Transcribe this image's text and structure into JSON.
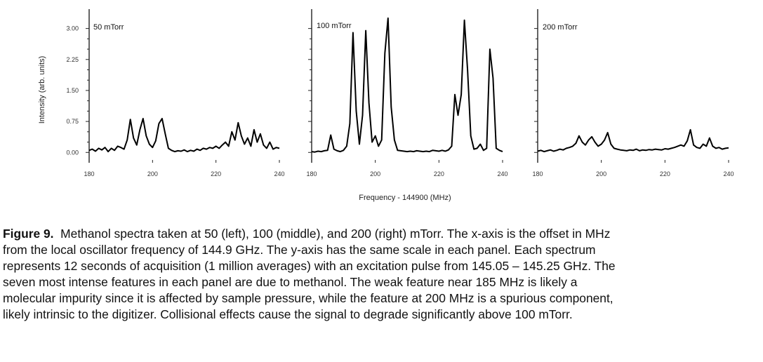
{
  "chart_data": {
    "type": "line",
    "ylabel": "Intensity (arb. units)",
    "xlabel": "Frequency - 144900 (MHz)",
    "yticks": [
      "0.00",
      "0.75",
      "1.50",
      "2.25",
      "3.00"
    ],
    "ylim": [
      -0.25,
      3.35
    ],
    "panels": [
      {
        "label": "50 mTorr",
        "xticks": [
          "180",
          "200",
          "220",
          "240"
        ],
        "xlim": [
          180,
          240
        ],
        "x": [
          180,
          181,
          182,
          183,
          184,
          185,
          186,
          187,
          188,
          189,
          190,
          191,
          192,
          193,
          194,
          195,
          196,
          197,
          198,
          199,
          200,
          201,
          202,
          203,
          204,
          205,
          206,
          207,
          208,
          209,
          210,
          211,
          212,
          213,
          214,
          215,
          216,
          217,
          218,
          219,
          220,
          221,
          222,
          223,
          224,
          225,
          226,
          227,
          228,
          229,
          230,
          231,
          232,
          233,
          234,
          235,
          236,
          237,
          238,
          239,
          240
        ],
        "y": [
          0.05,
          0.08,
          0.03,
          0.1,
          0.06,
          0.12,
          0.02,
          0.1,
          0.05,
          0.15,
          0.12,
          0.08,
          0.3,
          0.8,
          0.35,
          0.18,
          0.55,
          0.82,
          0.4,
          0.2,
          0.12,
          0.28,
          0.7,
          0.82,
          0.45,
          0.1,
          0.05,
          0.02,
          0.04,
          0.03,
          0.06,
          0.02,
          0.05,
          0.03,
          0.08,
          0.05,
          0.1,
          0.08,
          0.12,
          0.1,
          0.15,
          0.1,
          0.18,
          0.25,
          0.15,
          0.5,
          0.3,
          0.72,
          0.4,
          0.2,
          0.35,
          0.15,
          0.55,
          0.25,
          0.45,
          0.18,
          0.1,
          0.25,
          0.08,
          0.12,
          0.1
        ]
      },
      {
        "label": "100 mTorr",
        "xticks": [
          "180",
          "200",
          "220",
          "240"
        ],
        "xlim": [
          180,
          240
        ],
        "x": [
          180,
          181,
          182,
          183,
          184,
          185,
          186,
          187,
          188,
          189,
          190,
          191,
          192,
          193,
          194,
          195,
          196,
          197,
          198,
          199,
          200,
          201,
          202,
          203,
          204,
          205,
          206,
          207,
          208,
          209,
          210,
          211,
          212,
          213,
          214,
          215,
          216,
          217,
          218,
          219,
          220,
          221,
          222,
          223,
          224,
          225,
          226,
          227,
          228,
          229,
          230,
          231,
          232,
          233,
          234,
          235,
          236,
          237,
          238,
          239,
          240
        ],
        "y": [
          0.02,
          0.01,
          0.03,
          0.02,
          0.04,
          0.05,
          0.42,
          0.08,
          0.04,
          0.02,
          0.05,
          0.15,
          0.7,
          2.9,
          1.0,
          0.2,
          0.9,
          2.95,
          1.2,
          0.25,
          0.4,
          0.15,
          0.3,
          2.4,
          3.25,
          1.1,
          0.3,
          0.05,
          0.04,
          0.03,
          0.02,
          0.03,
          0.02,
          0.04,
          0.03,
          0.02,
          0.03,
          0.02,
          0.05,
          0.04,
          0.03,
          0.05,
          0.03,
          0.06,
          0.15,
          1.4,
          0.9,
          1.4,
          3.2,
          2.0,
          0.4,
          0.08,
          0.1,
          0.2,
          0.05,
          0.1,
          2.5,
          1.8,
          0.1,
          0.05,
          0.02
        ]
      },
      {
        "label": "200 mTorr",
        "xticks": [
          "180",
          "200",
          "220",
          "240"
        ],
        "xlim": [
          180,
          240
        ],
        "x": [
          180,
          181,
          182,
          183,
          184,
          185,
          186,
          187,
          188,
          189,
          190,
          191,
          192,
          193,
          194,
          195,
          196,
          197,
          198,
          199,
          200,
          201,
          202,
          203,
          204,
          205,
          206,
          207,
          208,
          209,
          210,
          211,
          212,
          213,
          214,
          215,
          216,
          217,
          218,
          219,
          220,
          221,
          222,
          223,
          224,
          225,
          226,
          227,
          228,
          229,
          230,
          231,
          232,
          233,
          234,
          235,
          236,
          237,
          238,
          239,
          240
        ],
        "y": [
          0.03,
          0.05,
          0.02,
          0.04,
          0.06,
          0.03,
          0.05,
          0.08,
          0.06,
          0.1,
          0.12,
          0.15,
          0.22,
          0.4,
          0.25,
          0.18,
          0.3,
          0.38,
          0.25,
          0.15,
          0.2,
          0.3,
          0.48,
          0.2,
          0.1,
          0.08,
          0.06,
          0.05,
          0.04,
          0.06,
          0.05,
          0.08,
          0.04,
          0.06,
          0.05,
          0.07,
          0.06,
          0.08,
          0.07,
          0.06,
          0.09,
          0.08,
          0.1,
          0.12,
          0.15,
          0.18,
          0.15,
          0.28,
          0.55,
          0.18,
          0.12,
          0.1,
          0.2,
          0.15,
          0.35,
          0.15,
          0.1,
          0.12,
          0.08,
          0.1,
          0.11
        ]
      }
    ]
  },
  "caption": {
    "title": "Figure 9.",
    "lines": [
      "Methanol spectra taken at 50 (left), 100 (middle), and 200 (right) mTorr.  The x-axis is the offset in MHz",
      "from the local oscillator frequency of 144.9 GHz.  The y-axis has the same scale in each panel.  Each spectrum",
      "represents 12 seconds of acquisition (1 million averages) with an excitation pulse from 145.05 – 145.25 GHz.  The",
      "seven most intense features in each panel are due to methanol.  The weak feature near 185 MHz is likely a",
      "molecular impurity since it is affected by sample pressure, while the feature at 200 MHz is a spurious component,",
      "likely intrinsic to the digitizer.  Collisional effects cause the signal to degrade significantly above 100 mTorr."
    ]
  }
}
